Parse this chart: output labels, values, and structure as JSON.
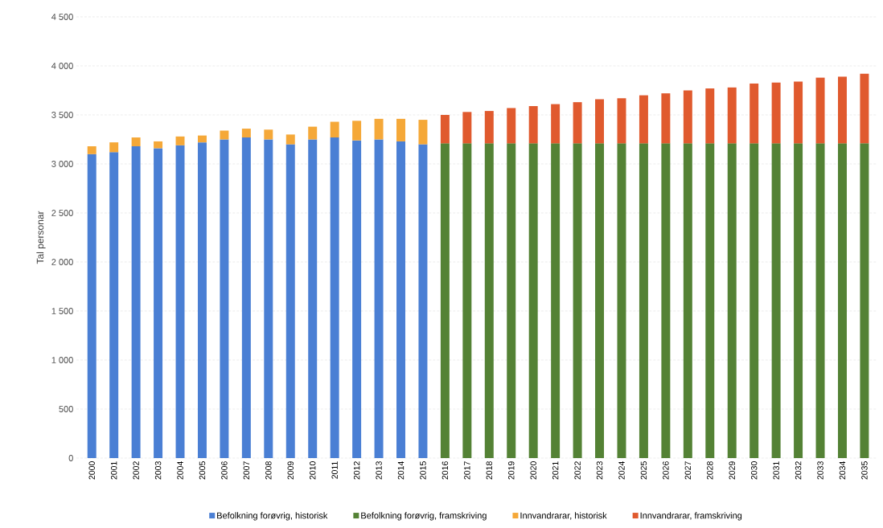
{
  "chart_data": {
    "type": "bar",
    "stacked": true,
    "ylabel": "Tal personar",
    "categories": [
      "2000",
      "2001",
      "2002",
      "2003",
      "2004",
      "2005",
      "2006",
      "2007",
      "2008",
      "2009",
      "2010",
      "2011",
      "2012",
      "2013",
      "2014",
      "2015",
      "2016",
      "2017",
      "2018",
      "2019",
      "2020",
      "2021",
      "2022",
      "2023",
      "2024",
      "2025",
      "2026",
      "2027",
      "2028",
      "2029",
      "2030",
      "2031",
      "2032",
      "2033",
      "2034",
      "2035"
    ],
    "series": [
      {
        "name": "Befolkning forøvrig, historisk",
        "color": "#4a7fd4",
        "values": [
          3100,
          3120,
          3180,
          3160,
          3190,
          3220,
          3250,
          3270,
          3250,
          3200,
          3250,
          3270,
          3240,
          3250,
          3230,
          3200,
          null,
          null,
          null,
          null,
          null,
          null,
          null,
          null,
          null,
          null,
          null,
          null,
          null,
          null,
          null,
          null,
          null,
          null,
          null,
          null
        ]
      },
      {
        "name": "Befolkning forøvrig, framskriving",
        "color": "#548235",
        "values": [
          null,
          null,
          null,
          null,
          null,
          null,
          null,
          null,
          null,
          null,
          null,
          null,
          null,
          null,
          null,
          null,
          3210,
          3210,
          3210,
          3210,
          3210,
          3210,
          3210,
          3210,
          3210,
          3210,
          3210,
          3210,
          3210,
          3210,
          3210,
          3210,
          3210,
          3210,
          3210,
          3210
        ]
      },
      {
        "name": "Innvandrarar, historisk",
        "color": "#f5a838",
        "values": [
          80,
          100,
          90,
          70,
          90,
          70,
          90,
          90,
          100,
          100,
          130,
          160,
          200,
          210,
          230,
          250,
          null,
          null,
          null,
          null,
          null,
          null,
          null,
          null,
          null,
          null,
          null,
          null,
          null,
          null,
          null,
          null,
          null,
          null,
          null,
          null
        ]
      },
      {
        "name": "Innvandrarar, framskriving",
        "color": "#e05a2e",
        "values": [
          null,
          null,
          null,
          null,
          null,
          null,
          null,
          null,
          null,
          null,
          null,
          null,
          null,
          null,
          null,
          null,
          290,
          320,
          330,
          360,
          380,
          400,
          420,
          450,
          460,
          490,
          510,
          540,
          560,
          570,
          610,
          620,
          630,
          670,
          680,
          710
        ]
      }
    ],
    "ylim": [
      0,
      4500
    ],
    "yticks": [
      0,
      500,
      {
        "value": 1000,
        "label": "1 000"
      },
      {
        "value": 1500,
        "label": "1 500"
      },
      {
        "value": 2000,
        "label": "2 000"
      },
      {
        "value": 2500,
        "label": "2 500"
      },
      {
        "value": 3000,
        "label": "3 000"
      },
      {
        "value": 3500,
        "label": "3 500"
      },
      {
        "value": 4000,
        "label": "4 000"
      },
      {
        "value": 4500,
        "label": "4 500"
      }
    ],
    "grid": "y",
    "legend": "bottom"
  }
}
